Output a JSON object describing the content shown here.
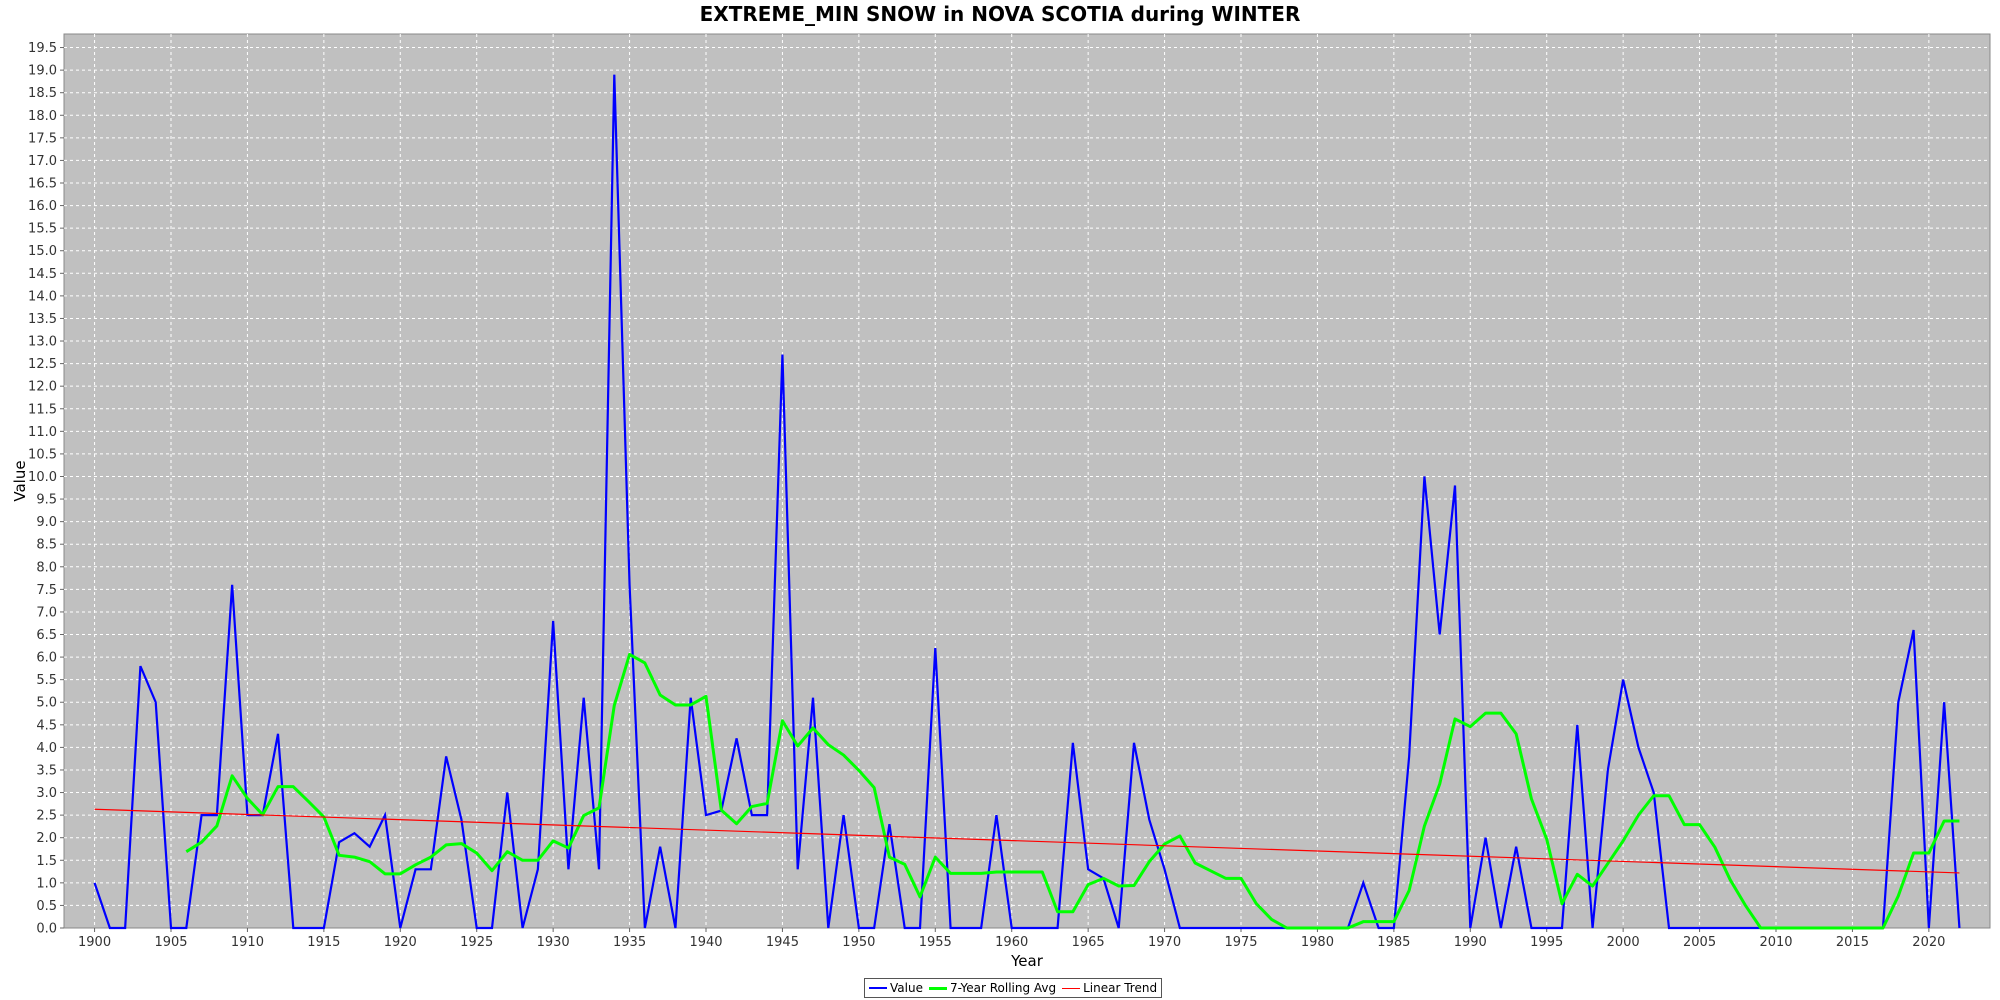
{
  "chart_data": {
    "type": "line",
    "title": "EXTREME_MIN SNOW in NOVA SCOTIA during WINTER",
    "xlabel": "Year",
    "ylabel": "Value",
    "xlim": [
      1898,
      2024
    ],
    "ylim": [
      0,
      19.8
    ],
    "x_ticks": [
      1900,
      1905,
      1910,
      1915,
      1920,
      1925,
      1930,
      1935,
      1940,
      1945,
      1950,
      1955,
      1960,
      1965,
      1970,
      1975,
      1980,
      1985,
      1990,
      1995,
      2000,
      2005,
      2010,
      2015,
      2020
    ],
    "y_tick_step": 0.5,
    "grid": true,
    "legend_position": "bottom",
    "x": [
      1900,
      1901,
      1902,
      1903,
      1904,
      1905,
      1906,
      1907,
      1908,
      1909,
      1910,
      1911,
      1912,
      1913,
      1914,
      1915,
      1916,
      1917,
      1918,
      1919,
      1920,
      1921,
      1922,
      1923,
      1924,
      1925,
      1926,
      1927,
      1928,
      1929,
      1930,
      1931,
      1932,
      1933,
      1934,
      1935,
      1936,
      1937,
      1938,
      1939,
      1940,
      1941,
      1942,
      1943,
      1944,
      1945,
      1946,
      1947,
      1948,
      1949,
      1950,
      1951,
      1952,
      1953,
      1954,
      1955,
      1956,
      1957,
      1958,
      1959,
      1960,
      1961,
      1962,
      1963,
      1964,
      1965,
      1966,
      1967,
      1968,
      1969,
      1970,
      1971,
      1972,
      1973,
      1974,
      1975,
      1976,
      1977,
      1978,
      1979,
      1980,
      1981,
      1982,
      1983,
      1984,
      1985,
      1986,
      1987,
      1988,
      1989,
      1990,
      1991,
      1992,
      1993,
      1994,
      1995,
      1996,
      1997,
      1998,
      1999,
      2000,
      2001,
      2002,
      2003,
      2004,
      2005,
      2006,
      2007,
      2008,
      2009,
      2010,
      2011,
      2012,
      2013,
      2014,
      2015,
      2016,
      2017,
      2018,
      2019,
      2020,
      2021,
      2022
    ],
    "series": [
      {
        "name": "Value",
        "color": "#0000ff",
        "values": [
          1.0,
          0,
          0,
          5.8,
          5.0,
          0,
          0,
          2.5,
          2.5,
          7.6,
          2.5,
          2.5,
          4.3,
          0,
          0,
          0,
          1.9,
          2.1,
          1.8,
          2.5,
          0,
          1.3,
          1.3,
          3.8,
          2.4,
          0,
          0,
          3.0,
          0,
          1.3,
          6.8,
          1.3,
          5.1,
          1.3,
          18.9,
          7.6,
          0,
          1.8,
          0,
          5.1,
          2.5,
          2.6,
          4.2,
          2.5,
          2.5,
          12.7,
          1.3,
          5.1,
          0,
          2.5,
          0,
          0,
          2.3,
          0,
          0,
          6.2,
          0,
          0,
          0,
          2.5,
          0,
          0,
          0,
          0,
          4.1,
          1.3,
          1.1,
          0,
          4.1,
          2.4,
          1.3,
          0,
          0,
          0,
          0,
          0,
          0,
          0,
          0,
          0,
          0,
          0,
          0,
          1.0,
          0,
          0,
          3.8,
          10.0,
          6.5,
          9.8,
          0,
          2.0,
          0,
          1.8,
          0,
          0,
          0,
          4.5,
          0,
          3.5,
          5.5,
          4.0,
          3.0,
          0,
          0,
          0,
          0,
          0,
          0,
          0,
          0,
          0,
          0,
          0,
          0,
          0,
          0,
          0,
          5.0,
          6.6,
          0,
          5.0,
          0
        ]
      },
      {
        "name": "7-Year Rolling Avg",
        "color": "#00ff00",
        "values": [
          null,
          null,
          null,
          null,
          null,
          null,
          1.69,
          1.9,
          2.26,
          3.37,
          2.87,
          2.51,
          3.13,
          3.13,
          2.8,
          2.46,
          1.61,
          1.57,
          1.47,
          1.2,
          1.2,
          1.4,
          1.57,
          1.84,
          1.87,
          1.66,
          1.27,
          1.69,
          1.5,
          1.5,
          1.93,
          1.77,
          2.49,
          2.66,
          4.93,
          6.06,
          5.87,
          5.16,
          4.94,
          4.94,
          5.13,
          2.61,
          2.31,
          2.69,
          2.76,
          4.59,
          4.03,
          4.43,
          4.06,
          3.83,
          3.49,
          3.11,
          1.57,
          1.41,
          0.69,
          1.57,
          1.21,
          1.21,
          1.21,
          1.24,
          1.24,
          1.24,
          1.24,
          0.36,
          0.36,
          0.96,
          1.1,
          0.93,
          0.94,
          1.47,
          1.86,
          2.04,
          1.44,
          1.27,
          1.1,
          1.1,
          0.54,
          0.19,
          0,
          0,
          0,
          0,
          0,
          0.14,
          0.14,
          0.14,
          0.83,
          2.26,
          3.19,
          4.63,
          4.46,
          4.76,
          4.76,
          4.3,
          2.86,
          1.97,
          0.54,
          1.19,
          0.93,
          1.43,
          1.93,
          2.5,
          2.93,
          2.93,
          2.29,
          2.29,
          1.79,
          1.07,
          0.5,
          0,
          0,
          0,
          0,
          0,
          0,
          0,
          0,
          0,
          0.71,
          1.66,
          1.66,
          2.37,
          2.37
        ]
      },
      {
        "name": "Linear Trend",
        "color": "#ff0000",
        "start": 2.63,
        "end": 1.22
      }
    ]
  }
}
